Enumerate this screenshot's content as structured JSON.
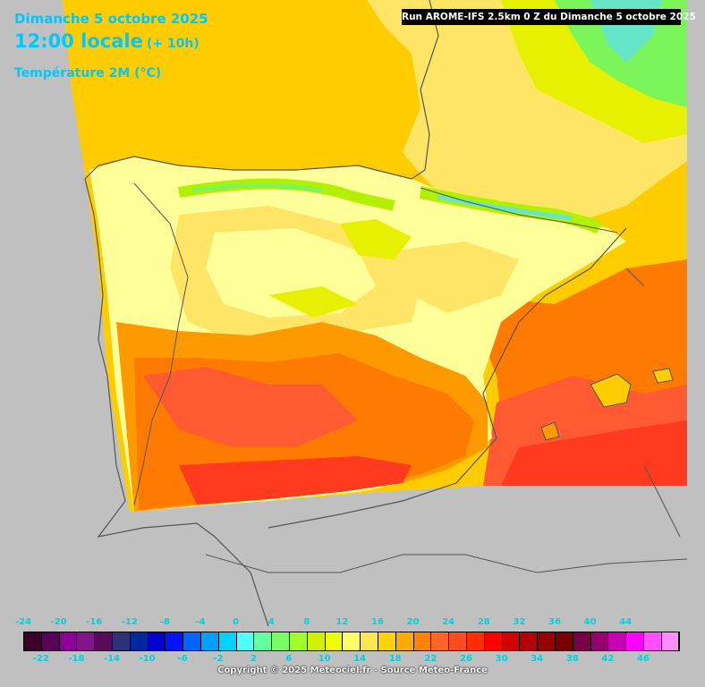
{
  "header": {
    "date": "Dimanche 5 octobre 2025",
    "time": "12:00 locale",
    "offset": "(+ 10h)",
    "variable": "Température 2M (°C)"
  },
  "run_info": "Run AROME-IFS 2.5km 0 Z du Dimanche 5 octobre 2025",
  "map": {
    "region": "Iberian Peninsula / southern France",
    "colors": {
      "background": "#c0c0c0",
      "t_14": "#ffff99",
      "t_16": "#ffe566",
      "t_18": "#ffcc00",
      "t_20": "#ff9900",
      "t_22": "#ff7a00",
      "t_24": "#ff5a32",
      "t_26": "#ff3a1e",
      "t_8": "#7cf55a",
      "t_10": "#b2f000",
      "t_12": "#e6f000",
      "t_4": "#66e6c8",
      "borders": "#555555"
    }
  },
  "legend": {
    "labels_top": [
      "-24",
      "-20",
      "-16",
      "-12",
      "-8",
      "-4",
      "0",
      "4",
      "8",
      "12",
      "16",
      "20",
      "24",
      "28",
      "32",
      "36",
      "40",
      "44"
    ],
    "labels_bottom": [
      "-22",
      "-18",
      "-14",
      "-10",
      "-6",
      "-2",
      "2",
      "6",
      "10",
      "14",
      "18",
      "22",
      "26",
      "30",
      "34",
      "38",
      "42",
      "46"
    ],
    "colors": [
      "#3c0028",
      "#5a005a",
      "#8c0096",
      "#82148c",
      "#5a0a5a",
      "#2d3278",
      "#00289c",
      "#0000d2",
      "#0014ff",
      "#0064ff",
      "#00a0ff",
      "#00d2ff",
      "#50ffff",
      "#64ffa0",
      "#78ff64",
      "#a0ff28",
      "#d2f000",
      "#f0ff00",
      "#ffff64",
      "#ffe650",
      "#ffd200",
      "#ffaa00",
      "#ff8200",
      "#ff6428",
      "#ff4b1e",
      "#ff2d00",
      "#ff0000",
      "#d20000",
      "#b40000",
      "#960000",
      "#780000",
      "#780046",
      "#96006e",
      "#c800b4",
      "#ff00ff",
      "#ff50ff",
      "#ff8cff"
    ]
  },
  "copyright": "Copyright © 2025 Meteociel.fr - Source Meteo-France"
}
